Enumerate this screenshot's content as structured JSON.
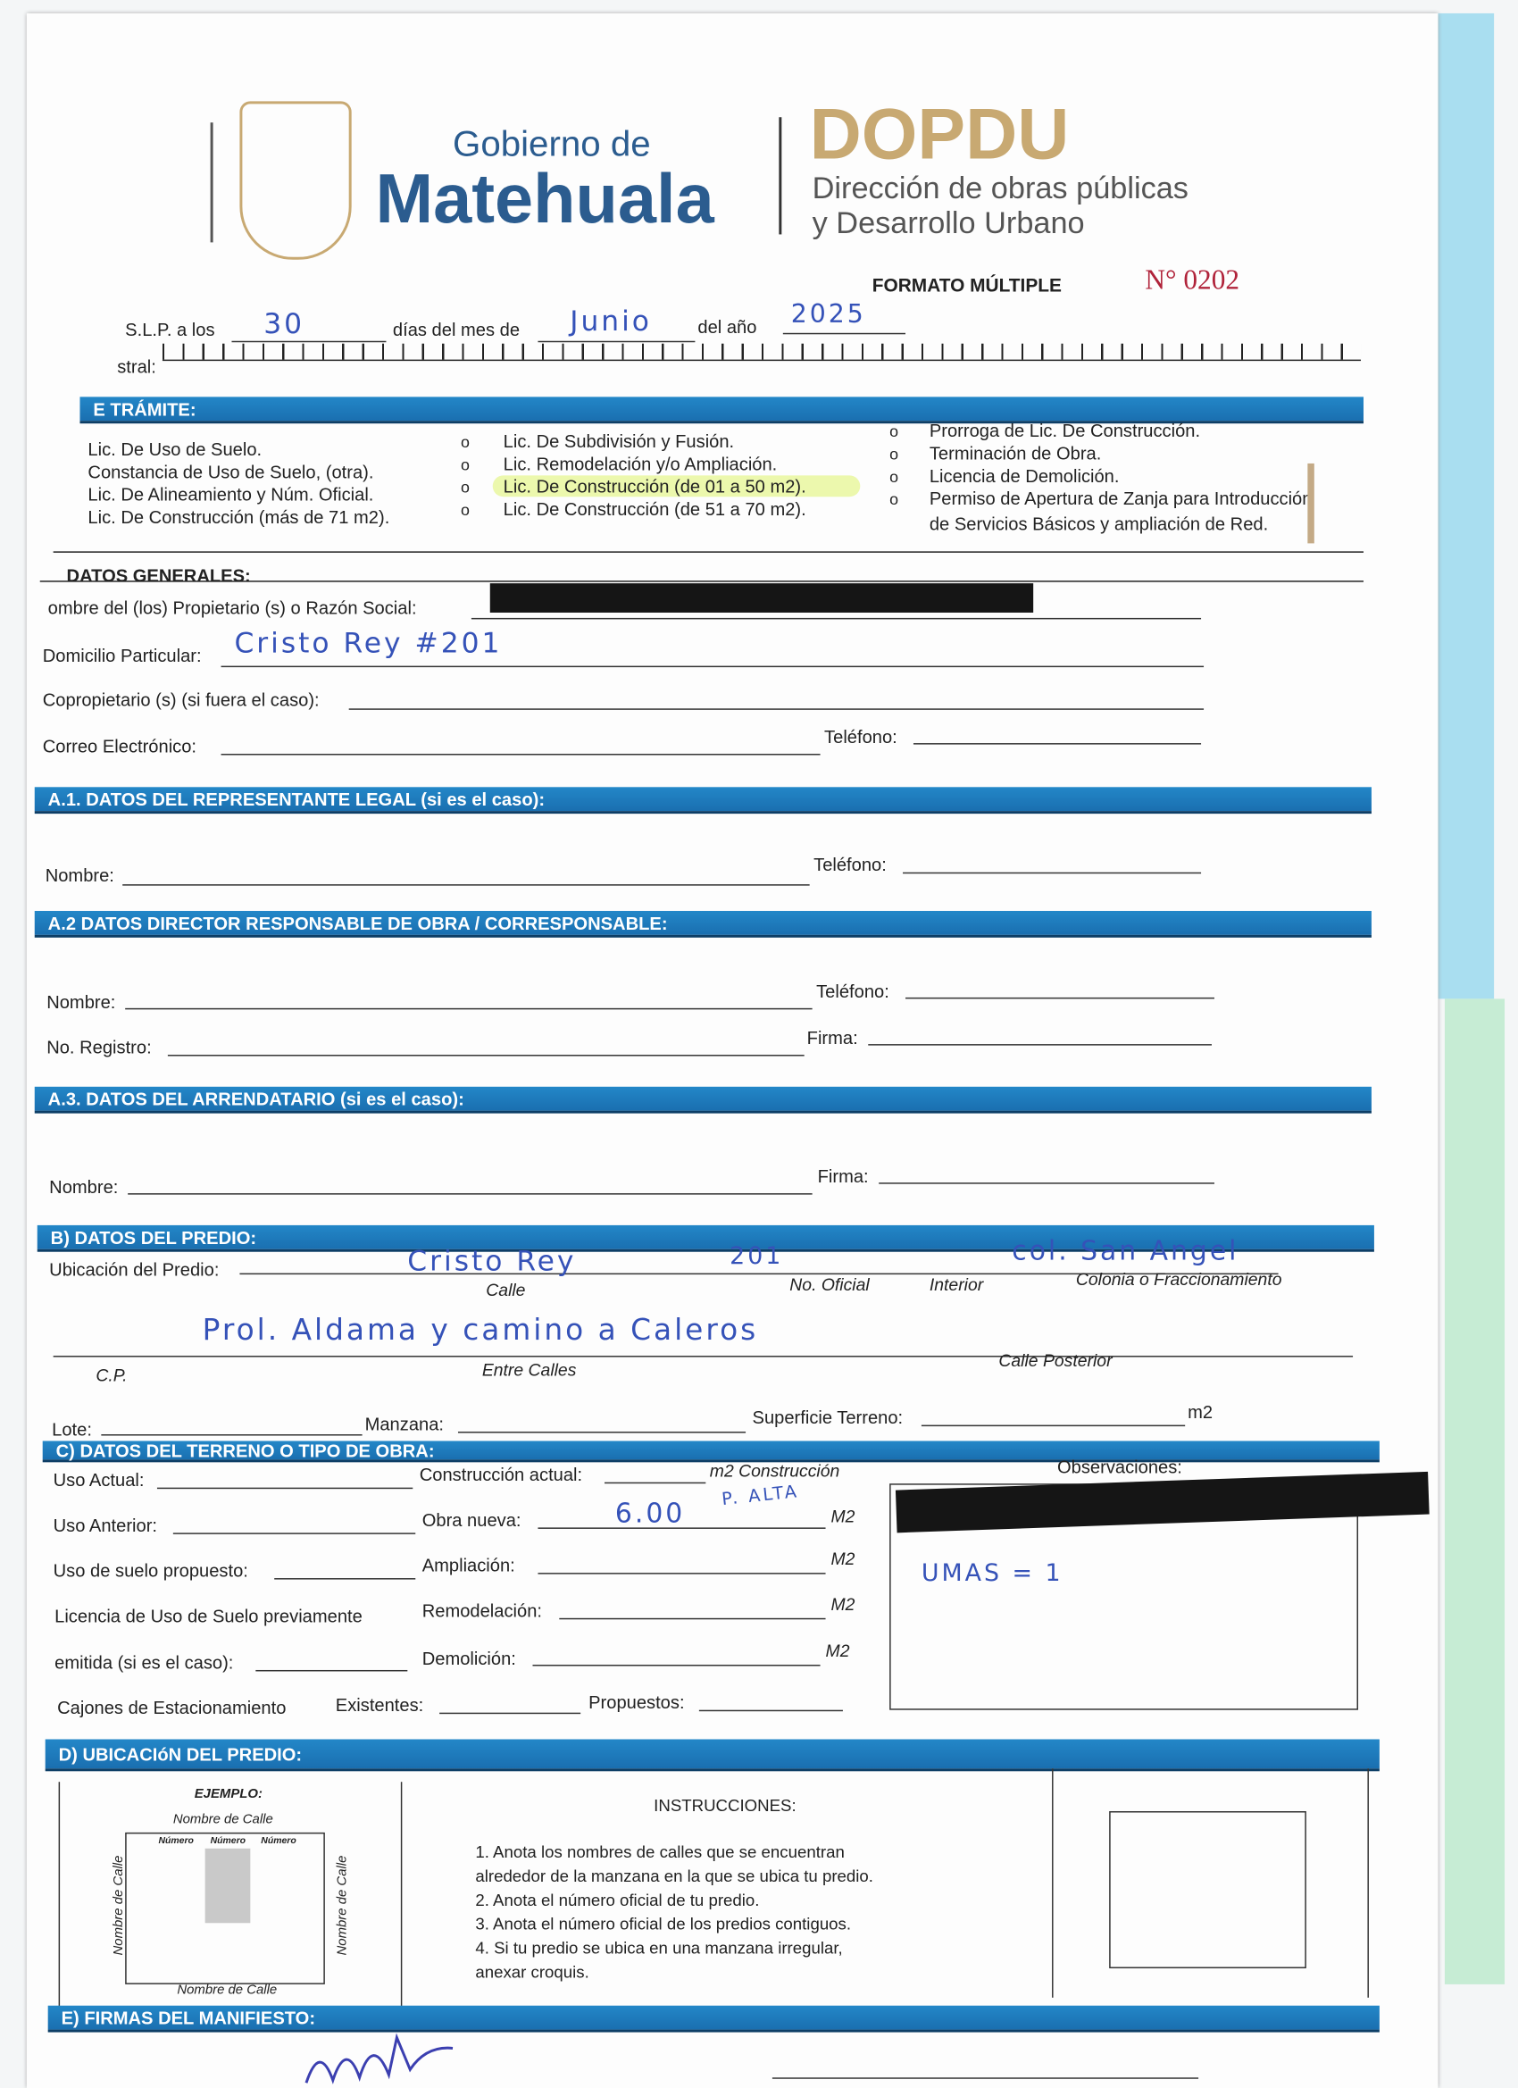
{
  "header": {
    "gov_small": "Gobierno de",
    "gov_big": "Matehuala",
    "dept_acronym": "DOPDU",
    "dept_name_line1": "Dirección de obras públicas",
    "dept_name_line2": "y Desarrollo Urbano",
    "form_title": "FORMATO MÚLTIPLE",
    "folio": "N° 0202"
  },
  "date_line": {
    "prefix": "S.L.P. a los",
    "day": "30",
    "days_label": "días del mes de",
    "month": "Junio",
    "year_label": "del año",
    "year": "2025"
  },
  "catastral_label": "stral:",
  "tramite": {
    "title": "E TRÁMITE:",
    "col1": [
      "Lic. De Uso de Suelo.",
      "Constancia de Uso de Suelo, (otra).",
      "Lic. De Alineamiento y Núm. Oficial.",
      "Lic. De Construcción (más de 71 m2)."
    ],
    "col2": [
      "Lic. De Subdivisión y Fusión.",
      "Lic. Remodelación y/o Ampliación.",
      "Lic. De Construcción (de 01 a 50 m2).",
      "Lic. De Construcción (de 51 a 70 m2)."
    ],
    "col3": [
      "Prorroga de Lic. De Construcción.",
      "Terminación de Obra.",
      "Licencia de Demolición.",
      "Permiso de Apertura de Zanja para Introducción",
      "de Servicios Básicos y ampliación de Red."
    ],
    "highlight_color": "#e4f58a"
  },
  "datos_generales": {
    "title": "DATOS GENERALES:",
    "owner_label": "ombre del (los) Propietario (s) o Razón Social:",
    "address_label": "Domicilio Particular:",
    "address_value": "Cristo Rey #201",
    "coowner_label": "Copropietario (s) (si fuera el caso):",
    "email_label": "Correo Electrónico:",
    "phone_label": "Teléfono:"
  },
  "a1": {
    "title": "A.1. DATOS DEL REPRESENTANTE LEGAL (si es el caso):",
    "name_label": "Nombre:",
    "phone_label": "Teléfono:"
  },
  "a2": {
    "title": "A.2  DATOS DIRECTOR RESPONSABLE DE OBRA / CORRESPONSABLE:",
    "name_label": "Nombre:",
    "phone_label": "Teléfono:",
    "registry_label": "No. Registro:",
    "signature_label": "Firma:"
  },
  "a3": {
    "title": "A.3. DATOS DEL ARRENDATARIO (si es el caso):",
    "name_label": "Nombre:",
    "signature_label": "Firma:"
  },
  "b": {
    "title": "B) DATOS DEL PREDIO:",
    "location_label": "Ubicación del Predio:",
    "street_value": "Cristo Rey",
    "number_value": "201",
    "colonia_value": "col. San Angel",
    "street_caption": "Calle",
    "number_caption": "No. Oficial",
    "interior_caption": "Interior",
    "colonia_caption": "Colonia o Fraccionamiento",
    "cross_value": "Prol. Aldama y camino a Caleros",
    "cp_caption": "C.P.",
    "cross_caption": "Entre Calles",
    "rear_caption": "Calle Posterior",
    "lote_label": "Lote:",
    "manzana_label": "Manzana:",
    "superficie_label": "Superficie Terreno:",
    "m2": "m2"
  },
  "c": {
    "title": "C) DATOS DEL TERRENO O TIPO DE OBRA:",
    "uso_actual": "Uso Actual:",
    "construccion_actual": "Construcción actual:",
    "m2_construccion": "m2 Construcción",
    "uso_anterior": "Uso Anterior:",
    "obra_nueva": "Obra nueva:",
    "obra_nueva_value": "6.00",
    "obra_nueva_note": "P. ALTA",
    "uso_propuesto": "Uso de suelo propuesto:",
    "ampliacion": "Ampliación:",
    "licencia_line1": "Licencia de Uso de Suelo previamente",
    "licencia_line2": "emitida (si es el caso):",
    "remodelacion": "Remodelación:",
    "demolicion": "Demolición:",
    "M2": "M2",
    "cajones": "Cajones de Estacionamiento",
    "existentes": "Existentes:",
    "propuestos": "Propuestos:",
    "observaciones": "Observaciones:",
    "obs_value": "UMAS = 1"
  },
  "d": {
    "title": "D) UBICACIóN DEL PREDIO:",
    "example": "EJEMPLO:",
    "street_name": "Nombre de Calle",
    "numero": "Número",
    "instructions_title": "INSTRUCCIONES:",
    "instructions": [
      "1. Anota los nombres de calles que se encuentran",
      "alrededor de la manzana en la que se ubica tu predio.",
      "2. Anota el número oficial de tu predio.",
      "3. Anota el número oficial de los predios contiguos.",
      "4. Si tu predio se ubica en una manzana irregular,",
      "anexar croquis."
    ]
  },
  "e": {
    "title": "E) FIRMAS DEL MANIFIESTO:"
  },
  "colors": {
    "bar_blue": "#1f7cc0",
    "logo_blue": "#2b5c8f",
    "logo_gold": "#c8a972",
    "folio_red": "#b0233a",
    "ink": "#3552b8"
  }
}
